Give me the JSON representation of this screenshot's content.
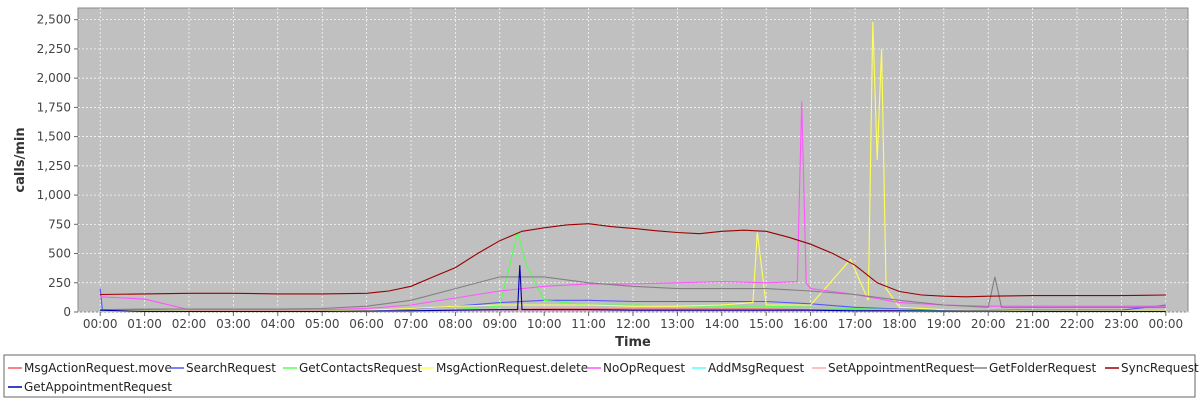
{
  "chart_data": {
    "type": "line",
    "title": "",
    "xlabel": "Time",
    "ylabel": "calls/min",
    "ylim": [
      0,
      2600
    ],
    "y_ticks": [
      0,
      250,
      500,
      750,
      1000,
      1250,
      1500,
      1750,
      2000,
      2250,
      2500
    ],
    "y_tick_labels": [
      "0",
      "250",
      "500",
      "750",
      "1,000",
      "1,250",
      "1,500",
      "1,750",
      "2,000",
      "2,250",
      "2,500"
    ],
    "x_ticks": [
      0,
      1,
      2,
      3,
      4,
      5,
      6,
      7,
      8,
      9,
      10,
      11,
      12,
      13,
      14,
      15,
      16,
      17,
      18,
      19,
      20,
      21,
      22,
      23,
      24
    ],
    "x_tick_labels": [
      "00:00",
      "01:00",
      "02:00",
      "03:00",
      "04:00",
      "05:00",
      "06:00",
      "07:00",
      "08:00",
      "09:00",
      "10:00",
      "11:00",
      "12:00",
      "13:00",
      "14:00",
      "15:00",
      "16:00",
      "17:00",
      "18:00",
      "19:00",
      "20:00",
      "21:00",
      "22:00",
      "23:00",
      "00:00"
    ],
    "grid": true,
    "legend_position": "bottom",
    "background": "#c0c0c0",
    "series": [
      {
        "name": "MsgActionRequest.move",
        "color": "#ff5555",
        "x": [
          0,
          1,
          2,
          3,
          4,
          5,
          6,
          7,
          8,
          9,
          10,
          11,
          12,
          13,
          14,
          15,
          16,
          17,
          18,
          19,
          20,
          21,
          22,
          23,
          24
        ],
        "y": [
          10,
          5,
          5,
          5,
          5,
          5,
          8,
          10,
          15,
          20,
          25,
          25,
          25,
          25,
          25,
          25,
          20,
          15,
          10,
          8,
          8,
          8,
          5,
          5,
          5
        ]
      },
      {
        "name": "SearchRequest",
        "color": "#5555ff",
        "x": [
          0,
          0.05,
          1,
          2,
          3,
          4,
          5,
          6,
          7,
          8,
          9,
          10,
          11,
          12,
          13,
          14,
          15,
          16,
          17,
          18,
          19,
          20,
          21,
          22,
          23,
          24
        ],
        "y": [
          200,
          15,
          15,
          10,
          10,
          10,
          10,
          15,
          25,
          50,
          80,
          100,
          100,
          90,
          90,
          90,
          90,
          70,
          40,
          25,
          20,
          18,
          15,
          15,
          15,
          60
        ]
      },
      {
        "name": "GetContactsRequest",
        "color": "#55ff55",
        "x": [
          0,
          1,
          2,
          3,
          4,
          5,
          6,
          7,
          8,
          9,
          9.4,
          9.6,
          10,
          11,
          12,
          13,
          14,
          15,
          16,
          17,
          18,
          19,
          20,
          21,
          22,
          23,
          24
        ],
        "y": [
          10,
          5,
          5,
          5,
          5,
          5,
          5,
          10,
          20,
          50,
          680,
          400,
          100,
          60,
          60,
          50,
          50,
          50,
          40,
          30,
          20,
          10,
          10,
          5,
          5,
          5,
          5
        ]
      },
      {
        "name": "MsgActionRequest.delete",
        "color": "#ffff55",
        "x": [
          0,
          1,
          2,
          3,
          4,
          5,
          6,
          7,
          8,
          9,
          10,
          11,
          12,
          13,
          14,
          14.7,
          14.8,
          15,
          16,
          16.9,
          17.3,
          17.4,
          17.5,
          17.6,
          17.7,
          18,
          19,
          20,
          21,
          22,
          23,
          24
        ],
        "y": [
          20,
          10,
          10,
          10,
          10,
          10,
          15,
          30,
          50,
          60,
          60,
          60,
          50,
          50,
          60,
          80,
          680,
          60,
          60,
          450,
          100,
          2480,
          1300,
          2250,
          200,
          40,
          20,
          15,
          10,
          10,
          10,
          10
        ]
      },
      {
        "name": "NoOpRequest",
        "color": "#ff55ff",
        "x": [
          0,
          1,
          2,
          3,
          4,
          5,
          6,
          7,
          8,
          9,
          10,
          11,
          12,
          13,
          14,
          15,
          15.7,
          15.8,
          15.9,
          16,
          17,
          18,
          19,
          20,
          21,
          22,
          23,
          24
        ],
        "y": [
          130,
          110,
          20,
          20,
          20,
          20,
          30,
          60,
          120,
          180,
          220,
          240,
          240,
          250,
          260,
          250,
          260,
          1800,
          250,
          200,
          150,
          80,
          60,
          50,
          50,
          50,
          50,
          50
        ]
      },
      {
        "name": "AddMsgRequest",
        "color": "#55ffff",
        "x": [
          0,
          1,
          2,
          3,
          4,
          5,
          6,
          7,
          8,
          9,
          10,
          11,
          12,
          13,
          14,
          15,
          16,
          17,
          18,
          19,
          20,
          21,
          22,
          23,
          24
        ],
        "y": [
          5,
          3,
          3,
          3,
          3,
          3,
          5,
          8,
          12,
          15,
          18,
          18,
          18,
          18,
          18,
          18,
          15,
          10,
          8,
          5,
          5,
          5,
          3,
          3,
          3
        ]
      },
      {
        "name": "SetAppointmentRequest",
        "color": "#ffaaaa",
        "x": [
          0,
          1,
          2,
          3,
          4,
          5,
          6,
          7,
          8,
          9,
          10,
          11,
          12,
          13,
          14,
          15,
          16,
          17,
          18,
          19,
          20,
          21,
          22,
          23,
          24
        ],
        "y": [
          3,
          2,
          2,
          2,
          2,
          2,
          3,
          5,
          8,
          10,
          12,
          12,
          12,
          12,
          12,
          12,
          10,
          8,
          5,
          3,
          3,
          3,
          2,
          2,
          2
        ]
      },
      {
        "name": "GetFolderRequest",
        "color": "#808080",
        "x": [
          0,
          1,
          2,
          3,
          4,
          5,
          6,
          7,
          8,
          9,
          10,
          11,
          12,
          13,
          14,
          15,
          16,
          17,
          18,
          19,
          20,
          20.15,
          20.3,
          21,
          22,
          23,
          24
        ],
        "y": [
          20,
          25,
          25,
          25,
          25,
          30,
          50,
          100,
          200,
          300,
          300,
          250,
          220,
          200,
          200,
          200,
          180,
          150,
          100,
          60,
          40,
          300,
          40,
          40,
          40,
          40,
          40
        ]
      },
      {
        "name": "SyncRequest",
        "color": "#990000",
        "x": [
          0,
          1,
          2,
          3,
          4,
          5,
          6,
          6.5,
          7,
          7.5,
          8,
          8.5,
          9,
          9.5,
          10,
          10.5,
          11,
          11.5,
          12,
          12.5,
          13,
          13.5,
          14,
          14.5,
          15,
          15.5,
          16,
          16.5,
          17,
          17.5,
          18,
          18.5,
          19,
          19.5,
          20,
          21,
          22,
          23,
          24
        ],
        "y": [
          150,
          155,
          160,
          160,
          155,
          155,
          160,
          180,
          220,
          300,
          380,
          500,
          610,
          690,
          720,
          745,
          755,
          730,
          715,
          695,
          680,
          670,
          690,
          700,
          690,
          640,
          580,
          500,
          400,
          250,
          175,
          145,
          135,
          130,
          135,
          140,
          140,
          140,
          145
        ]
      },
      {
        "name": "GetAppointmentRequest",
        "color": "#0000aa",
        "x": [
          0,
          1,
          2,
          3,
          4,
          5,
          6,
          7,
          8,
          9,
          9.4,
          9.45,
          9.5,
          10,
          11,
          12,
          13,
          14,
          15,
          16,
          17,
          18,
          19,
          20,
          21,
          22,
          23,
          24
        ],
        "y": [
          15,
          5,
          5,
          5,
          5,
          5,
          8,
          10,
          15,
          20,
          20,
          400,
          20,
          20,
          20,
          15,
          15,
          15,
          15,
          15,
          10,
          10,
          8,
          8,
          5,
          5,
          5,
          5
        ]
      }
    ]
  }
}
